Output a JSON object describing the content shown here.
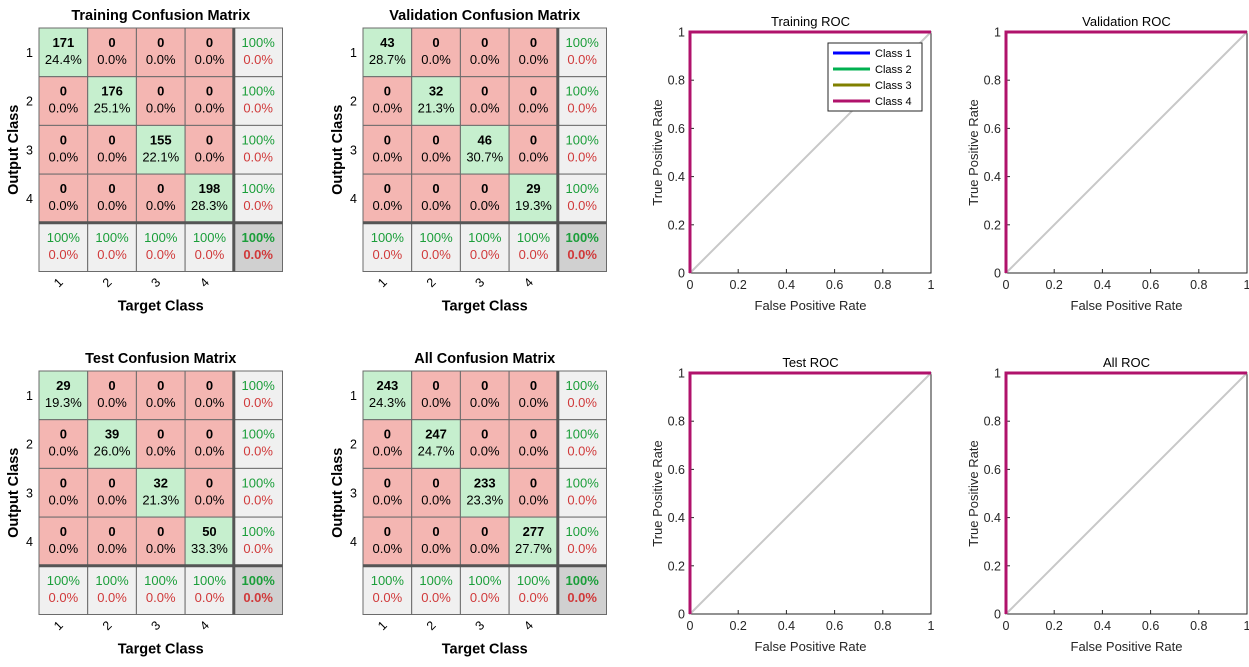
{
  "chart_data": [
    {
      "type": "heatmap",
      "title": "Training Confusion Matrix",
      "xlabel": "Target Class",
      "ylabel": "Output Class",
      "categories": [
        "1",
        "2",
        "3",
        "4"
      ],
      "counts": [
        [
          171,
          0,
          0,
          0
        ],
        [
          0,
          176,
          0,
          0
        ],
        [
          0,
          0,
          155,
          0
        ],
        [
          0,
          0,
          0,
          198
        ]
      ],
      "percents": [
        [
          "24.4%",
          "0.0%",
          "0.0%",
          "0.0%"
        ],
        [
          "0.0%",
          "25.1%",
          "0.0%",
          "0.0%"
        ],
        [
          "0.0%",
          "0.0%",
          "22.1%",
          "0.0%"
        ],
        [
          "0.0%",
          "0.0%",
          "0.0%",
          "28.3%"
        ]
      ],
      "row_summary": [
        [
          "100%",
          "0.0%"
        ],
        [
          "100%",
          "0.0%"
        ],
        [
          "100%",
          "0.0%"
        ],
        [
          "100%",
          "0.0%"
        ]
      ],
      "col_summary": [
        [
          "100%",
          "0.0%"
        ],
        [
          "100%",
          "0.0%"
        ],
        [
          "100%",
          "0.0%"
        ],
        [
          "100%",
          "0.0%"
        ]
      ],
      "overall": [
        "100%",
        "0.0%"
      ]
    },
    {
      "type": "heatmap",
      "title": "Validation Confusion Matrix",
      "xlabel": "Target Class",
      "ylabel": "Output Class",
      "categories": [
        "1",
        "2",
        "3",
        "4"
      ],
      "counts": [
        [
          43,
          0,
          0,
          0
        ],
        [
          0,
          32,
          0,
          0
        ],
        [
          0,
          0,
          46,
          0
        ],
        [
          0,
          0,
          0,
          29
        ]
      ],
      "percents": [
        [
          "28.7%",
          "0.0%",
          "0.0%",
          "0.0%"
        ],
        [
          "0.0%",
          "21.3%",
          "0.0%",
          "0.0%"
        ],
        [
          "0.0%",
          "0.0%",
          "30.7%",
          "0.0%"
        ],
        [
          "0.0%",
          "0.0%",
          "0.0%",
          "19.3%"
        ]
      ],
      "row_summary": [
        [
          "100%",
          "0.0%"
        ],
        [
          "100%",
          "0.0%"
        ],
        [
          "100%",
          "0.0%"
        ],
        [
          "100%",
          "0.0%"
        ]
      ],
      "col_summary": [
        [
          "100%",
          "0.0%"
        ],
        [
          "100%",
          "0.0%"
        ],
        [
          "100%",
          "0.0%"
        ],
        [
          "100%",
          "0.0%"
        ]
      ],
      "overall": [
        "100%",
        "0.0%"
      ]
    },
    {
      "type": "heatmap",
      "title": "Test Confusion Matrix",
      "xlabel": "Target Class",
      "ylabel": "Output Class",
      "categories": [
        "1",
        "2",
        "3",
        "4"
      ],
      "counts": [
        [
          29,
          0,
          0,
          0
        ],
        [
          0,
          39,
          0,
          0
        ],
        [
          0,
          0,
          32,
          0
        ],
        [
          0,
          0,
          0,
          50
        ]
      ],
      "percents": [
        [
          "19.3%",
          "0.0%",
          "0.0%",
          "0.0%"
        ],
        [
          "0.0%",
          "26.0%",
          "0.0%",
          "0.0%"
        ],
        [
          "0.0%",
          "0.0%",
          "21.3%",
          "0.0%"
        ],
        [
          "0.0%",
          "0.0%",
          "0.0%",
          "33.3%"
        ]
      ],
      "row_summary": [
        [
          "100%",
          "0.0%"
        ],
        [
          "100%",
          "0.0%"
        ],
        [
          "100%",
          "0.0%"
        ],
        [
          "100%",
          "0.0%"
        ]
      ],
      "col_summary": [
        [
          "100%",
          "0.0%"
        ],
        [
          "100%",
          "0.0%"
        ],
        [
          "100%",
          "0.0%"
        ],
        [
          "100%",
          "0.0%"
        ]
      ],
      "overall": [
        "100%",
        "0.0%"
      ]
    },
    {
      "type": "heatmap",
      "title": "All Confusion Matrix",
      "xlabel": "Target Class",
      "ylabel": "Output Class",
      "categories": [
        "1",
        "2",
        "3",
        "4"
      ],
      "counts": [
        [
          243,
          0,
          0,
          0
        ],
        [
          0,
          247,
          0,
          0
        ],
        [
          0,
          0,
          233,
          0
        ],
        [
          0,
          0,
          0,
          277
        ]
      ],
      "percents": [
        [
          "24.3%",
          "0.0%",
          "0.0%",
          "0.0%"
        ],
        [
          "0.0%",
          "24.7%",
          "0.0%",
          "0.0%"
        ],
        [
          "0.0%",
          "0.0%",
          "23.3%",
          "0.0%"
        ],
        [
          "0.0%",
          "0.0%",
          "0.0%",
          "27.7%"
        ]
      ],
      "row_summary": [
        [
          "100%",
          "0.0%"
        ],
        [
          "100%",
          "0.0%"
        ],
        [
          "100%",
          "0.0%"
        ],
        [
          "100%",
          "0.0%"
        ]
      ],
      "col_summary": [
        [
          "100%",
          "0.0%"
        ],
        [
          "100%",
          "0.0%"
        ],
        [
          "100%",
          "0.0%"
        ],
        [
          "100%",
          "0.0%"
        ]
      ],
      "overall": [
        "100%",
        "0.0%"
      ]
    },
    {
      "type": "line",
      "title": "Training ROC",
      "xlabel": "False Positive Rate",
      "ylabel": "True Positive Rate",
      "xlim": [
        0,
        1
      ],
      "ylim": [
        0,
        1
      ],
      "xticks": [
        "0",
        "0.2",
        "0.4",
        "0.6",
        "0.8",
        "1"
      ],
      "yticks": [
        "0",
        "0.2",
        "0.4",
        "0.6",
        "0.8",
        "1"
      ],
      "legend": "top-right",
      "series": [
        {
          "name": "Class 1",
          "x": [
            0,
            0,
            1
          ],
          "y": [
            0,
            1,
            1
          ]
        },
        {
          "name": "Class 2",
          "x": [
            0,
            0,
            1
          ],
          "y": [
            0,
            1,
            1
          ]
        },
        {
          "name": "Class 3",
          "x": [
            0,
            0,
            1
          ],
          "y": [
            0,
            1,
            1
          ]
        },
        {
          "name": "Class 4",
          "x": [
            0,
            0,
            1
          ],
          "y": [
            0,
            1,
            1
          ]
        }
      ],
      "diagonal": {
        "x": [
          0,
          1
        ],
        "y": [
          0,
          1
        ]
      }
    },
    {
      "type": "line",
      "title": "Validation ROC",
      "xlabel": "False Positive Rate",
      "ylabel": "True Positive Rate",
      "xlim": [
        0,
        1
      ],
      "ylim": [
        0,
        1
      ],
      "xticks": [
        "0",
        "0.2",
        "0.4",
        "0.6",
        "0.8",
        "1"
      ],
      "yticks": [
        "0",
        "0.2",
        "0.4",
        "0.6",
        "0.8",
        "1"
      ],
      "series": [
        {
          "x": [
            0,
            0,
            1
          ],
          "y": [
            0,
            1,
            1
          ]
        },
        {
          "x": [
            0,
            0,
            1
          ],
          "y": [
            0,
            1,
            1
          ]
        },
        {
          "x": [
            0,
            0,
            1
          ],
          "y": [
            0,
            1,
            1
          ]
        },
        {
          "x": [
            0,
            0,
            1
          ],
          "y": [
            0,
            1,
            1
          ]
        }
      ],
      "diagonal": {
        "x": [
          0,
          1
        ],
        "y": [
          0,
          1
        ]
      }
    },
    {
      "type": "line",
      "title": "Test ROC",
      "xlabel": "False Positive Rate",
      "ylabel": "True Positive Rate",
      "xlim": [
        0,
        1
      ],
      "ylim": [
        0,
        1
      ],
      "xticks": [
        "0",
        "0.2",
        "0.4",
        "0.6",
        "0.8",
        "1"
      ],
      "yticks": [
        "0",
        "0.2",
        "0.4",
        "0.6",
        "0.8",
        "1"
      ],
      "series": [
        {
          "x": [
            0,
            0,
            1
          ],
          "y": [
            0,
            1,
            1
          ]
        },
        {
          "x": [
            0,
            0,
            1
          ],
          "y": [
            0,
            1,
            1
          ]
        },
        {
          "x": [
            0,
            0,
            1
          ],
          "y": [
            0,
            1,
            1
          ]
        },
        {
          "x": [
            0,
            0,
            1
          ],
          "y": [
            0,
            1,
            1
          ]
        }
      ],
      "diagonal": {
        "x": [
          0,
          1
        ],
        "y": [
          0,
          1
        ]
      }
    },
    {
      "type": "line",
      "title": "All ROC",
      "xlabel": "False Positive Rate",
      "ylabel": "True Positive Rate",
      "xlim": [
        0,
        1
      ],
      "ylim": [
        0,
        1
      ],
      "xticks": [
        "0",
        "0.2",
        "0.4",
        "0.6",
        "0.8",
        "1"
      ],
      "yticks": [
        "0",
        "0.2",
        "0.4",
        "0.6",
        "0.8",
        "1"
      ],
      "series": [
        {
          "x": [
            0,
            0,
            1
          ],
          "y": [
            0,
            1,
            1
          ]
        },
        {
          "x": [
            0,
            0,
            1
          ],
          "y": [
            0,
            1,
            1
          ]
        },
        {
          "x": [
            0,
            0,
            1
          ],
          "y": [
            0,
            1,
            1
          ]
        },
        {
          "x": [
            0,
            0,
            1
          ],
          "y": [
            0,
            1,
            1
          ]
        }
      ],
      "diagonal": {
        "x": [
          0,
          1
        ],
        "y": [
          0,
          1
        ]
      }
    }
  ],
  "colors": {
    "correct_cell": "#c6efce",
    "incorrect_cell": "#f4b6b2",
    "summary_cell": "#f0f0f0",
    "overall_cell": "#d0d0d0",
    "good_text": "#1b9e3a",
    "bad_text": "#d0393a",
    "class_colors": [
      "#0000ff",
      "#00b050",
      "#808000",
      "#b0126b"
    ],
    "diagonal": "#c8c8c8"
  }
}
